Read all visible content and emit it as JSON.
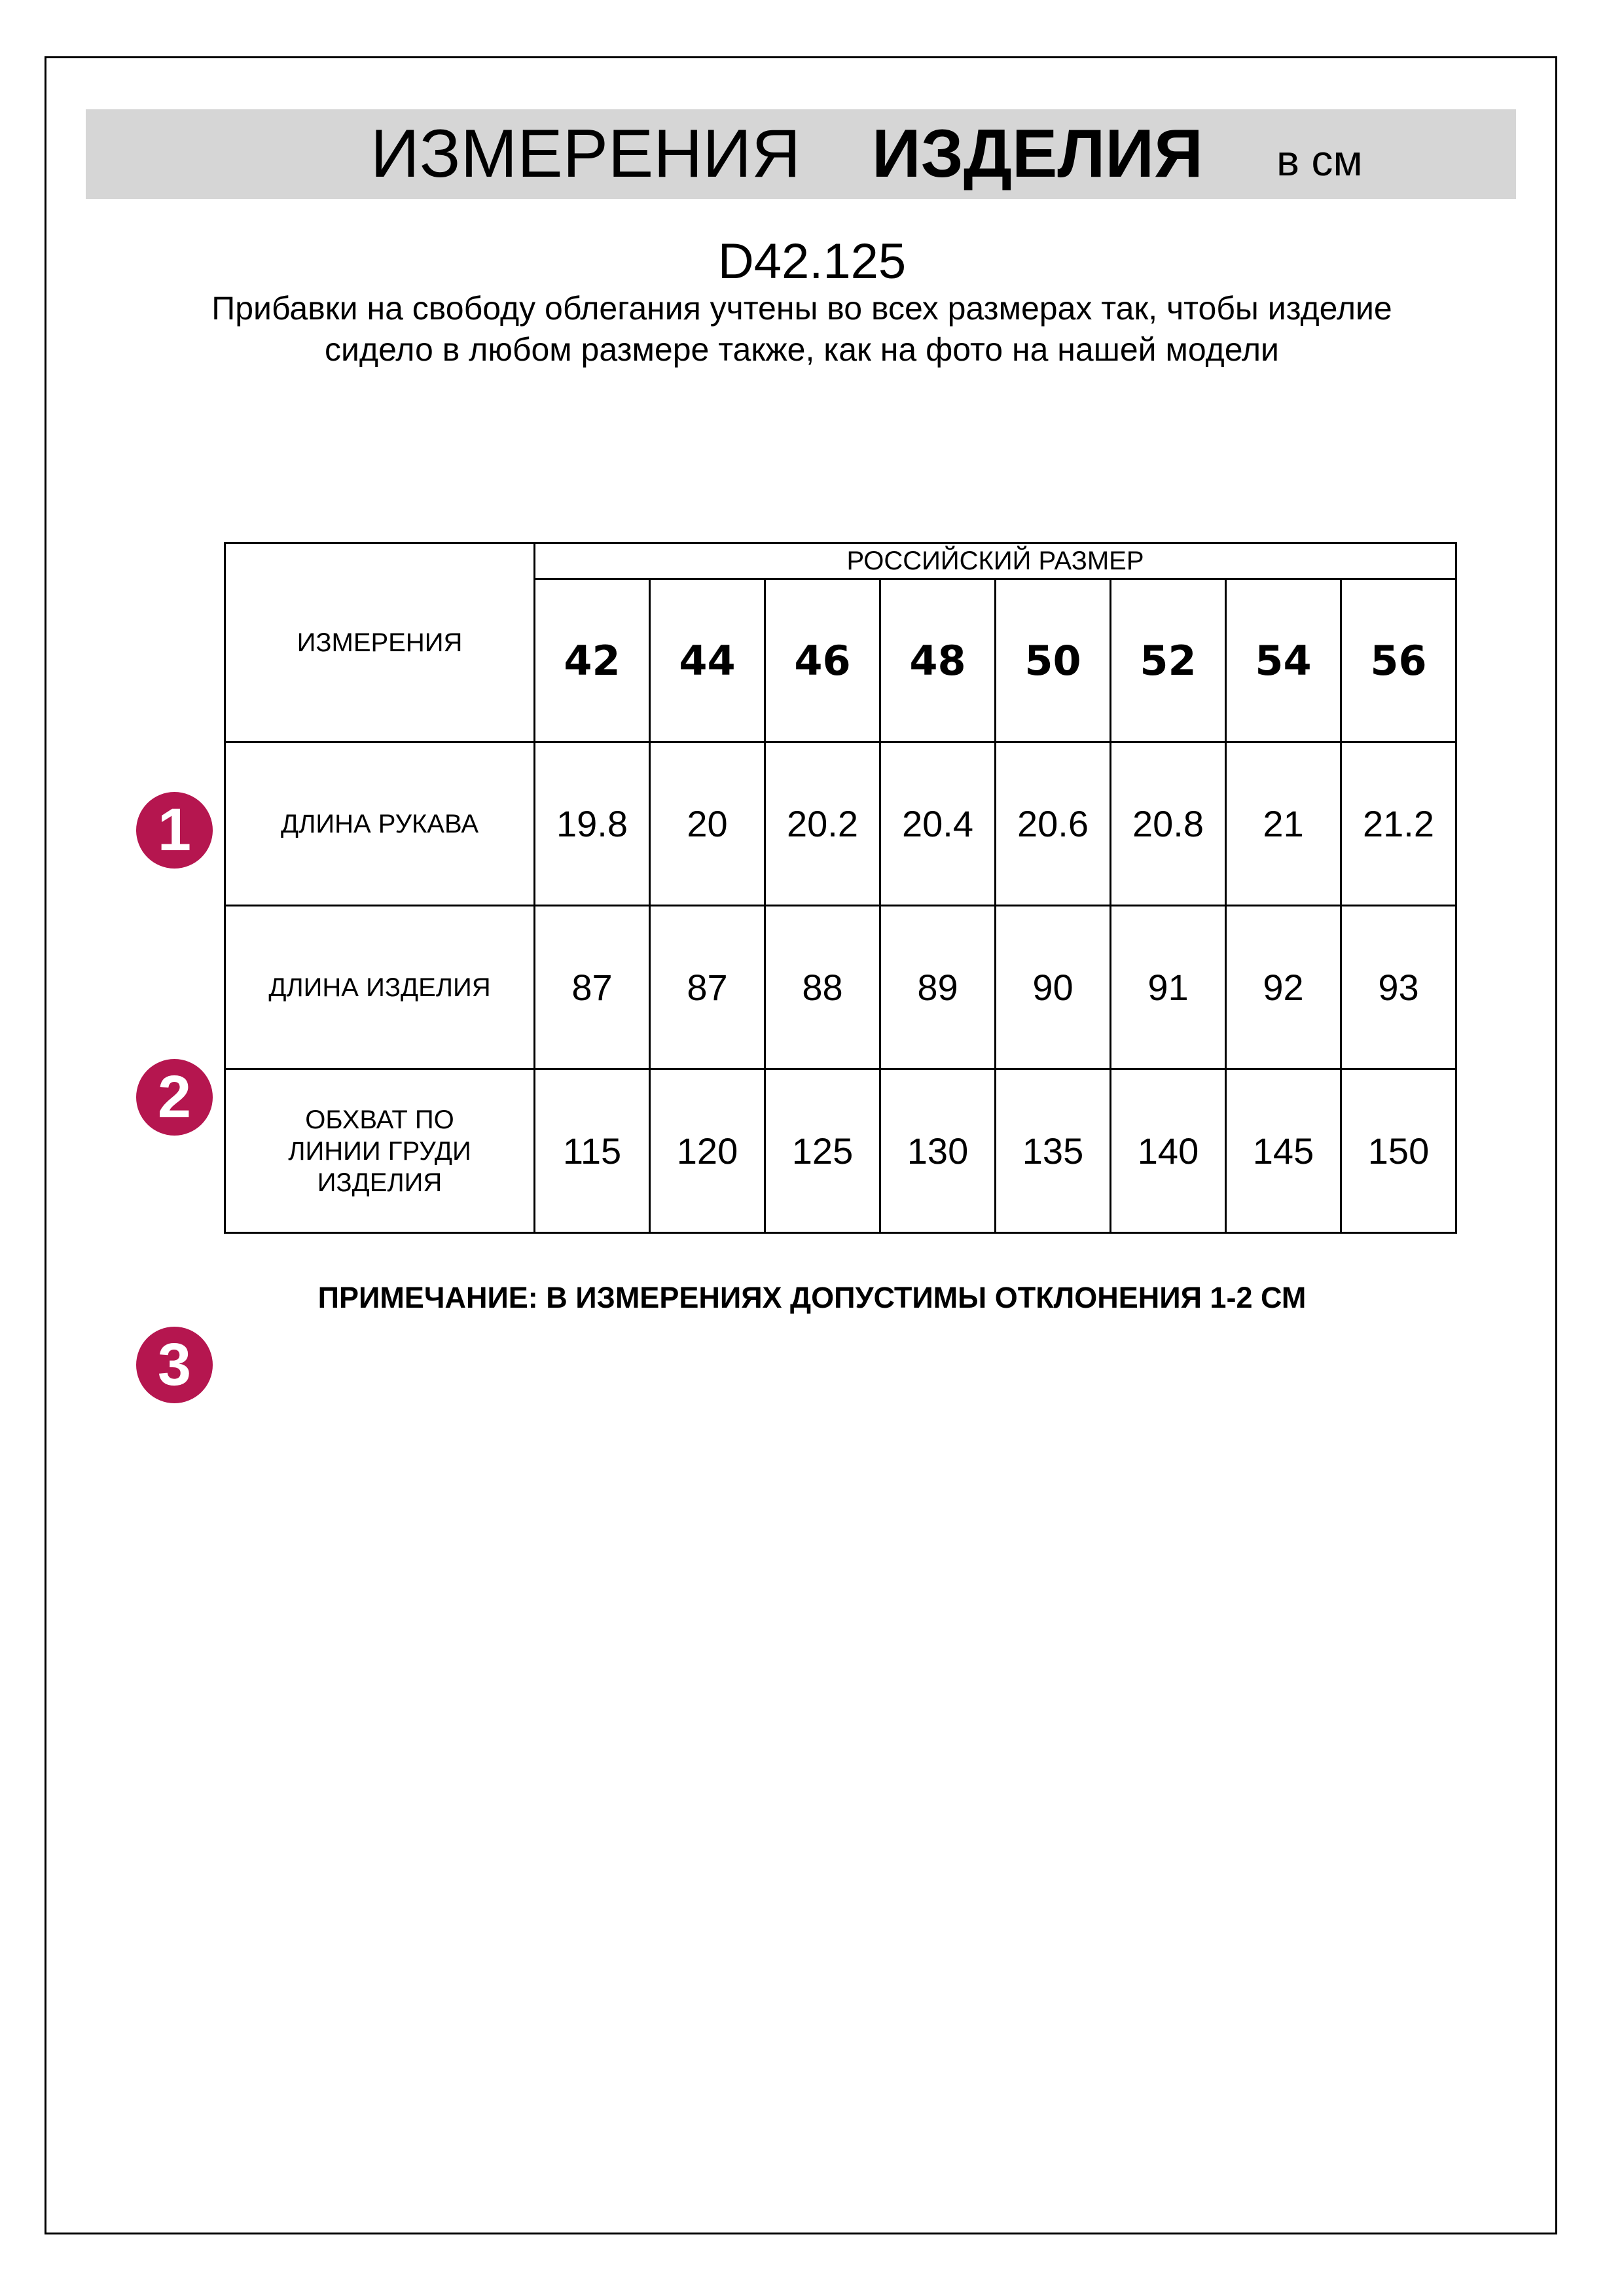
{
  "header": {
    "title_regular": "ИЗМЕРЕНИЯ",
    "title_bold": "ИЗДЕЛИЯ",
    "unit": "в см"
  },
  "product_code": "D42.125",
  "description": "Прибавки на свободу облегания учтены во всех размерах так, чтобы изделие сидело в любом размере также, как на фото на нашей модели",
  "table": {
    "corner_label": "ИЗМЕРЕНИЯ",
    "size_group_label": "РОССИЙСКИЙ РАЗМЕР",
    "sizes": [
      "42",
      "44",
      "46",
      "48",
      "50",
      "52",
      "54",
      "56"
    ],
    "rows": [
      {
        "number": "1",
        "label": "ДЛИНА РУКАВА",
        "values": [
          "19.8",
          "20",
          "20.2",
          "20.4",
          "20.6",
          "20.8",
          "21",
          "21.2"
        ]
      },
      {
        "number": "2",
        "label": "ДЛИНА ИЗДЕЛИЯ",
        "values": [
          "87",
          "87",
          "88",
          "89",
          "90",
          "91",
          "92",
          "93"
        ]
      },
      {
        "number": "3",
        "label": "ОБХВАТ ПО ЛИНИИ ГРУДИ ИЗДЕЛИЯ",
        "values": [
          "115",
          "120",
          "125",
          "130",
          "135",
          "140",
          "145",
          "150"
        ]
      }
    ]
  },
  "note": "ПРИМЕЧАНИЕ: В ИЗМЕРЕНИЯХ ДОПУСТИМЫ ОТКЛОНЕНИЯ 1-2 СМ",
  "colors": {
    "badge": "#b5164f",
    "header_band": "#d6d6d6"
  }
}
